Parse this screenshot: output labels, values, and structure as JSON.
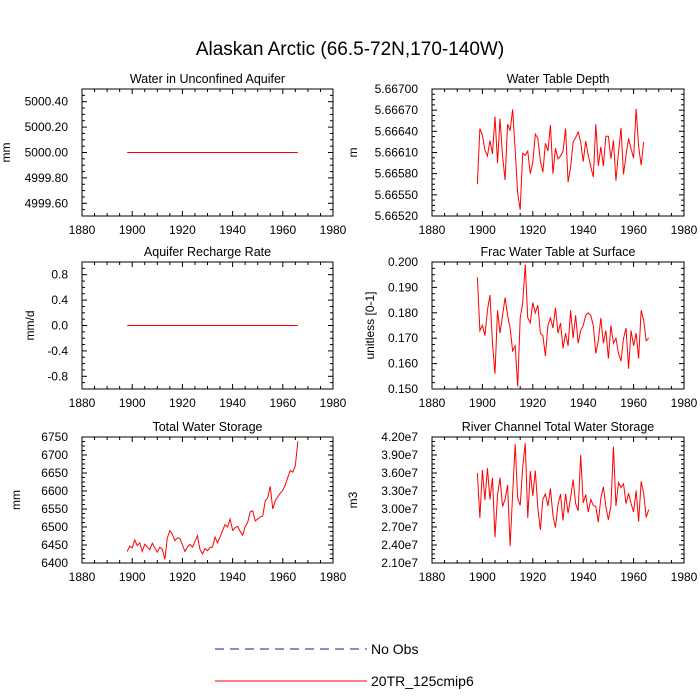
{
  "figure": {
    "title": "Alaskan Arctic (66.5-72N,170-140W)"
  },
  "colors": {
    "model": "#ff0000",
    "obs": "#1e1e8c",
    "frame": "#000000"
  },
  "legend": {
    "entries": [
      {
        "label": "No Obs",
        "style": "dashed",
        "color": "#1e1e8c"
      },
      {
        "label": "20TR_125cmip6",
        "style": "solid",
        "color": "#ff0000"
      }
    ]
  },
  "chart_data": [
    {
      "type": "line",
      "title": "Water in Unconfined Aquifer",
      "ylabel": "mm",
      "xlabel": "",
      "xlim": [
        1880,
        1980
      ],
      "ylim": [
        4999.5,
        5000.5
      ],
      "xticks": [
        "1880",
        "1900",
        "1920",
        "1940",
        "1960",
        "1980"
      ],
      "yticks": [
        {
          "v": 5000.4,
          "label": "5000.40"
        },
        {
          "v": 5000.2,
          "label": "5000.20"
        },
        {
          "v": 5000.0,
          "label": "5000.00"
        },
        {
          "v": 4999.8,
          "label": "4999.80"
        },
        {
          "v": 4999.6,
          "label": "4999.60"
        }
      ],
      "series": [
        {
          "name": "20TR_125cmip6",
          "x_start": 1898,
          "values": [
            5000,
            5000,
            5000,
            5000,
            5000,
            5000,
            5000,
            5000,
            5000,
            5000,
            5000,
            5000,
            5000,
            5000,
            5000,
            5000,
            5000,
            5000,
            5000,
            5000,
            5000,
            5000,
            5000,
            5000,
            5000,
            5000,
            5000,
            5000,
            5000,
            5000,
            5000,
            5000,
            5000,
            5000,
            5000,
            5000,
            5000,
            5000,
            5000,
            5000,
            5000,
            5000,
            5000,
            5000,
            5000,
            5000,
            5000,
            5000,
            5000,
            5000,
            5000,
            5000,
            5000,
            5000,
            5000,
            5000,
            5000,
            5000,
            5000,
            5000,
            5000,
            5000,
            5000,
            5000,
            5000,
            5000,
            5000,
            5000,
            5000
          ]
        }
      ]
    },
    {
      "type": "line",
      "title": "Water Table Depth",
      "ylabel": "m",
      "xlabel": "",
      "xlim": [
        1880,
        1980
      ],
      "ylim": [
        5.6652,
        5.667
      ],
      "xticks": [
        "1880",
        "1900",
        "1920",
        "1940",
        "1960",
        "1980"
      ],
      "yticks": [
        {
          "v": 5.667,
          "label": "5.66700"
        },
        {
          "v": 5.6667,
          "label": "5.66670"
        },
        {
          "v": 5.6664,
          "label": "5.66640"
        },
        {
          "v": 5.6661,
          "label": "5.66610"
        },
        {
          "v": 5.6658,
          "label": "5.66580"
        },
        {
          "v": 5.6655,
          "label": "5.66550"
        },
        {
          "v": 5.6652,
          "label": "5.66520"
        }
      ],
      "series": [
        {
          "name": "20TR_125cmip6",
          "x_start": 1898,
          "values": [
            5.66565,
            5.66644,
            5.66635,
            5.66613,
            5.66605,
            5.66627,
            5.66608,
            5.66661,
            5.66595,
            5.66658,
            5.66605,
            5.66571,
            5.6665,
            5.66641,
            5.66671,
            5.66614,
            5.66552,
            5.66529,
            5.66609,
            5.66606,
            5.66612,
            5.6658,
            5.66596,
            5.66636,
            5.6663,
            5.66598,
            5.66582,
            5.66623,
            5.66612,
            5.66649,
            5.6658,
            5.66616,
            5.66601,
            5.66605,
            5.66612,
            5.66644,
            5.66568,
            5.66589,
            5.66625,
            5.66631,
            5.66639,
            5.66625,
            5.66597,
            5.66626,
            5.66606,
            5.6659,
            5.66575,
            5.6665,
            5.66591,
            5.66618,
            5.66591,
            5.66633,
            5.66633,
            5.66601,
            5.66627,
            5.6657,
            5.6661,
            5.66645,
            5.66579,
            5.66606,
            5.6663,
            5.66615,
            5.66602,
            5.66672,
            5.66618,
            5.66592,
            5.66625
          ]
        }
      ]
    },
    {
      "type": "line",
      "title": "Aquifer Recharge Rate",
      "ylabel": "mm/d",
      "xlabel": "",
      "xlim": [
        1880,
        1980
      ],
      "ylim": [
        -1.0,
        1.0
      ],
      "xticks": [
        "1880",
        "1900",
        "1920",
        "1940",
        "1960",
        "1980"
      ],
      "yticks": [
        {
          "v": 0.8,
          "label": "0.8"
        },
        {
          "v": 0.4,
          "label": "0.4"
        },
        {
          "v": 0.0,
          "label": "0.0"
        },
        {
          "v": -0.4,
          "label": "-0.4"
        },
        {
          "v": -0.8,
          "label": "-0.8"
        }
      ],
      "series": [
        {
          "name": "20TR_125cmip6",
          "x_start": 1898,
          "values": [
            0,
            0,
            0,
            0,
            0,
            0,
            0,
            0,
            0,
            0,
            0,
            0,
            0,
            0,
            0,
            0,
            0,
            0,
            0,
            0,
            0,
            0,
            0,
            0,
            0,
            0,
            0,
            0,
            0,
            0,
            0,
            0,
            0,
            0,
            0,
            0,
            0,
            0,
            0,
            0,
            0,
            0,
            0,
            0,
            0,
            0,
            0,
            0,
            0,
            0,
            0,
            0,
            0,
            0,
            0,
            0,
            0,
            0,
            0,
            0,
            0,
            0,
            0,
            0,
            0,
            0,
            0,
            0,
            0
          ]
        }
      ]
    },
    {
      "type": "line",
      "title": "Frac Water Table at Surface",
      "ylabel": "unitless [0-1]",
      "xlabel": "",
      "xlim": [
        1880,
        1980
      ],
      "ylim": [
        0.15,
        0.2
      ],
      "xticks": [
        "1880",
        "1900",
        "1920",
        "1940",
        "1960",
        "1980"
      ],
      "yticks": [
        {
          "v": 0.2,
          "label": "0.200"
        },
        {
          "v": 0.19,
          "label": "0.190"
        },
        {
          "v": 0.18,
          "label": "0.180"
        },
        {
          "v": 0.17,
          "label": "0.170"
        },
        {
          "v": 0.16,
          "label": "0.160"
        },
        {
          "v": 0.15,
          "label": "0.150"
        }
      ],
      "series": [
        {
          "name": "20TR_125cmip6",
          "x_start": 1898,
          "values": [
            0.194,
            0.173,
            0.175,
            0.171,
            0.181,
            0.187,
            0.168,
            0.156,
            0.181,
            0.172,
            0.179,
            0.186,
            0.179,
            0.174,
            0.165,
            0.167,
            0.151,
            0.178,
            0.184,
            0.199,
            0.178,
            0.176,
            0.184,
            0.18,
            0.183,
            0.172,
            0.171,
            0.163,
            0.175,
            0.178,
            0.174,
            0.182,
            0.172,
            0.176,
            0.166,
            0.172,
            0.167,
            0.181,
            0.17,
            0.179,
            0.168,
            0.173,
            0.175,
            0.179,
            0.18,
            0.179,
            0.175,
            0.164,
            0.169,
            0.178,
            0.168,
            0.173,
            0.162,
            0.175,
            0.168,
            0.17,
            0.164,
            0.161,
            0.17,
            0.174,
            0.158,
            0.173,
            0.167,
            0.172,
            0.162,
            0.181,
            0.177,
            0.169,
            0.17
          ]
        }
      ]
    },
    {
      "type": "line",
      "title": "Total Water Storage",
      "ylabel": "mm",
      "xlabel": "",
      "xlim": [
        1880,
        1980
      ],
      "ylim": [
        6400,
        6750
      ],
      "xticks": [
        "1880",
        "1900",
        "1920",
        "1940",
        "1960",
        "1980"
      ],
      "yticks": [
        {
          "v": 6750,
          "label": "6750"
        },
        {
          "v": 6700,
          "label": "6700"
        },
        {
          "v": 6650,
          "label": "6650"
        },
        {
          "v": 6600,
          "label": "6600"
        },
        {
          "v": 6550,
          "label": "6550"
        },
        {
          "v": 6500,
          "label": "6500"
        },
        {
          "v": 6450,
          "label": "6450"
        },
        {
          "v": 6400,
          "label": "6400"
        }
      ],
      "series": [
        {
          "name": "20TR_125cmip6",
          "x_start": 1898,
          "values": [
            6432,
            6447,
            6442,
            6464,
            6448,
            6456,
            6432,
            6452,
            6445,
            6437,
            6455,
            6442,
            6430,
            6444,
            6438,
            6410,
            6470,
            6490,
            6480,
            6462,
            6470,
            6468,
            6450,
            6432,
            6444,
            6452,
            6444,
            6460,
            6476,
            6438,
            6425,
            6440,
            6434,
            6443,
            6444,
            6472,
            6456,
            6472,
            6490,
            6507,
            6500,
            6522,
            6491,
            6498,
            6502,
            6488,
            6477,
            6500,
            6513,
            6542,
            6545,
            6517,
            6522,
            6528,
            6530,
            6572,
            6582,
            6613,
            6550,
            6573,
            6584,
            6594,
            6602,
            6617,
            6638,
            6657,
            6652,
            6670,
            6738
          ]
        }
      ]
    },
    {
      "type": "line",
      "title": "River Channel Total Water Storage",
      "ylabel": "m3",
      "xlabel": "",
      "xlim": [
        1880,
        1980
      ],
      "ylim": [
        21000000,
        42000000
      ],
      "xticks": [
        "1880",
        "1900",
        "1920",
        "1940",
        "1960",
        "1980"
      ],
      "yticks": [
        {
          "v": 42000000,
          "label": "4.20e7"
        },
        {
          "v": 39000000,
          "label": "3.90e7"
        },
        {
          "v": 36000000,
          "label": "3.60e7"
        },
        {
          "v": 33000000,
          "label": "3.30e7"
        },
        {
          "v": 30000000,
          "label": "3.00e7"
        },
        {
          "v": 27000000,
          "label": "2.70e7"
        },
        {
          "v": 24000000,
          "label": "2.40e7"
        },
        {
          "v": 21000000,
          "label": "2.10e7"
        }
      ],
      "series": [
        {
          "name": "20TR_125cmip6",
          "x_start": 1898,
          "values": [
            36000000,
            28500000,
            36500000,
            31500000,
            36800000,
            31600000,
            35200000,
            25300000,
            32300000,
            35200000,
            30400000,
            31600000,
            34000000,
            23800000,
            32500000,
            40800000,
            31800000,
            30600000,
            37000000,
            41000000,
            28500000,
            36300000,
            32200000,
            36400000,
            30200000,
            26500000,
            31600000,
            32500000,
            30500000,
            33400000,
            28900000,
            26900000,
            30700000,
            32500000,
            28100000,
            32500000,
            29300000,
            31900000,
            34900000,
            30900000,
            29700000,
            39000000,
            31000000,
            32400000,
            29500000,
            31600000,
            30600000,
            30400000,
            27800000,
            31800000,
            33700000,
            30400000,
            28200000,
            30500000,
            40400000,
            30500000,
            34400000,
            33600000,
            34200000,
            30900000,
            32600000,
            30900000,
            29500000,
            33100000,
            27900000,
            34600000,
            32600000,
            28600000,
            29900000
          ]
        }
      ]
    }
  ]
}
